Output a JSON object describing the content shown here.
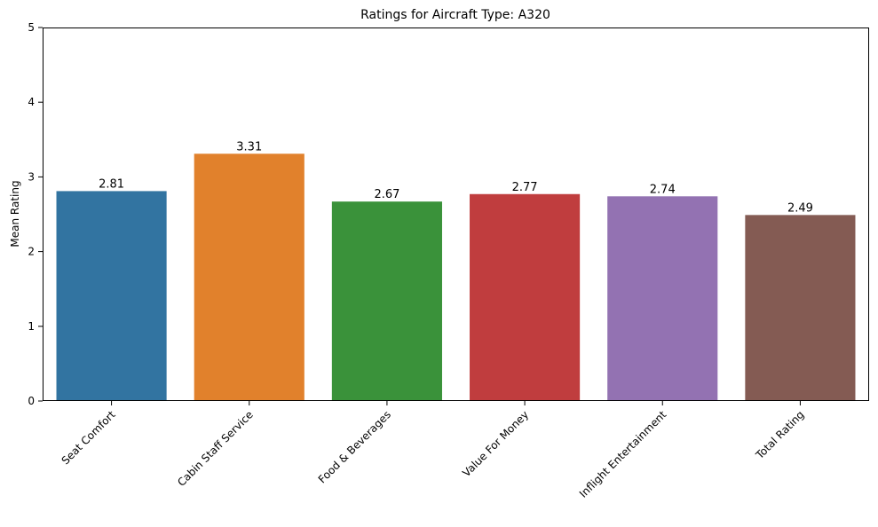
{
  "chart_data": {
    "type": "bar",
    "title": "Ratings for Aircraft Type: A320",
    "xlabel": "",
    "ylabel": "Mean Rating",
    "categories": [
      "Seat Comfort",
      "Cabin Staff Service",
      "Food & Beverages",
      "Value For Money",
      "Inflight Entertainment",
      "Total Rating"
    ],
    "values": [
      2.81,
      3.31,
      2.67,
      2.77,
      2.74,
      2.49
    ],
    "value_labels": [
      "2.81",
      "3.31",
      "2.67",
      "2.77",
      "2.74",
      "2.49"
    ],
    "colors": [
      "#3274a1",
      "#e1812c",
      "#3a923a",
      "#c03d3e",
      "#9372b2",
      "#845b53"
    ],
    "ylim": [
      0,
      5
    ],
    "yticks": [
      "0",
      "1",
      "2",
      "3",
      "4",
      "5"
    ],
    "grid": false,
    "legend": "none"
  }
}
